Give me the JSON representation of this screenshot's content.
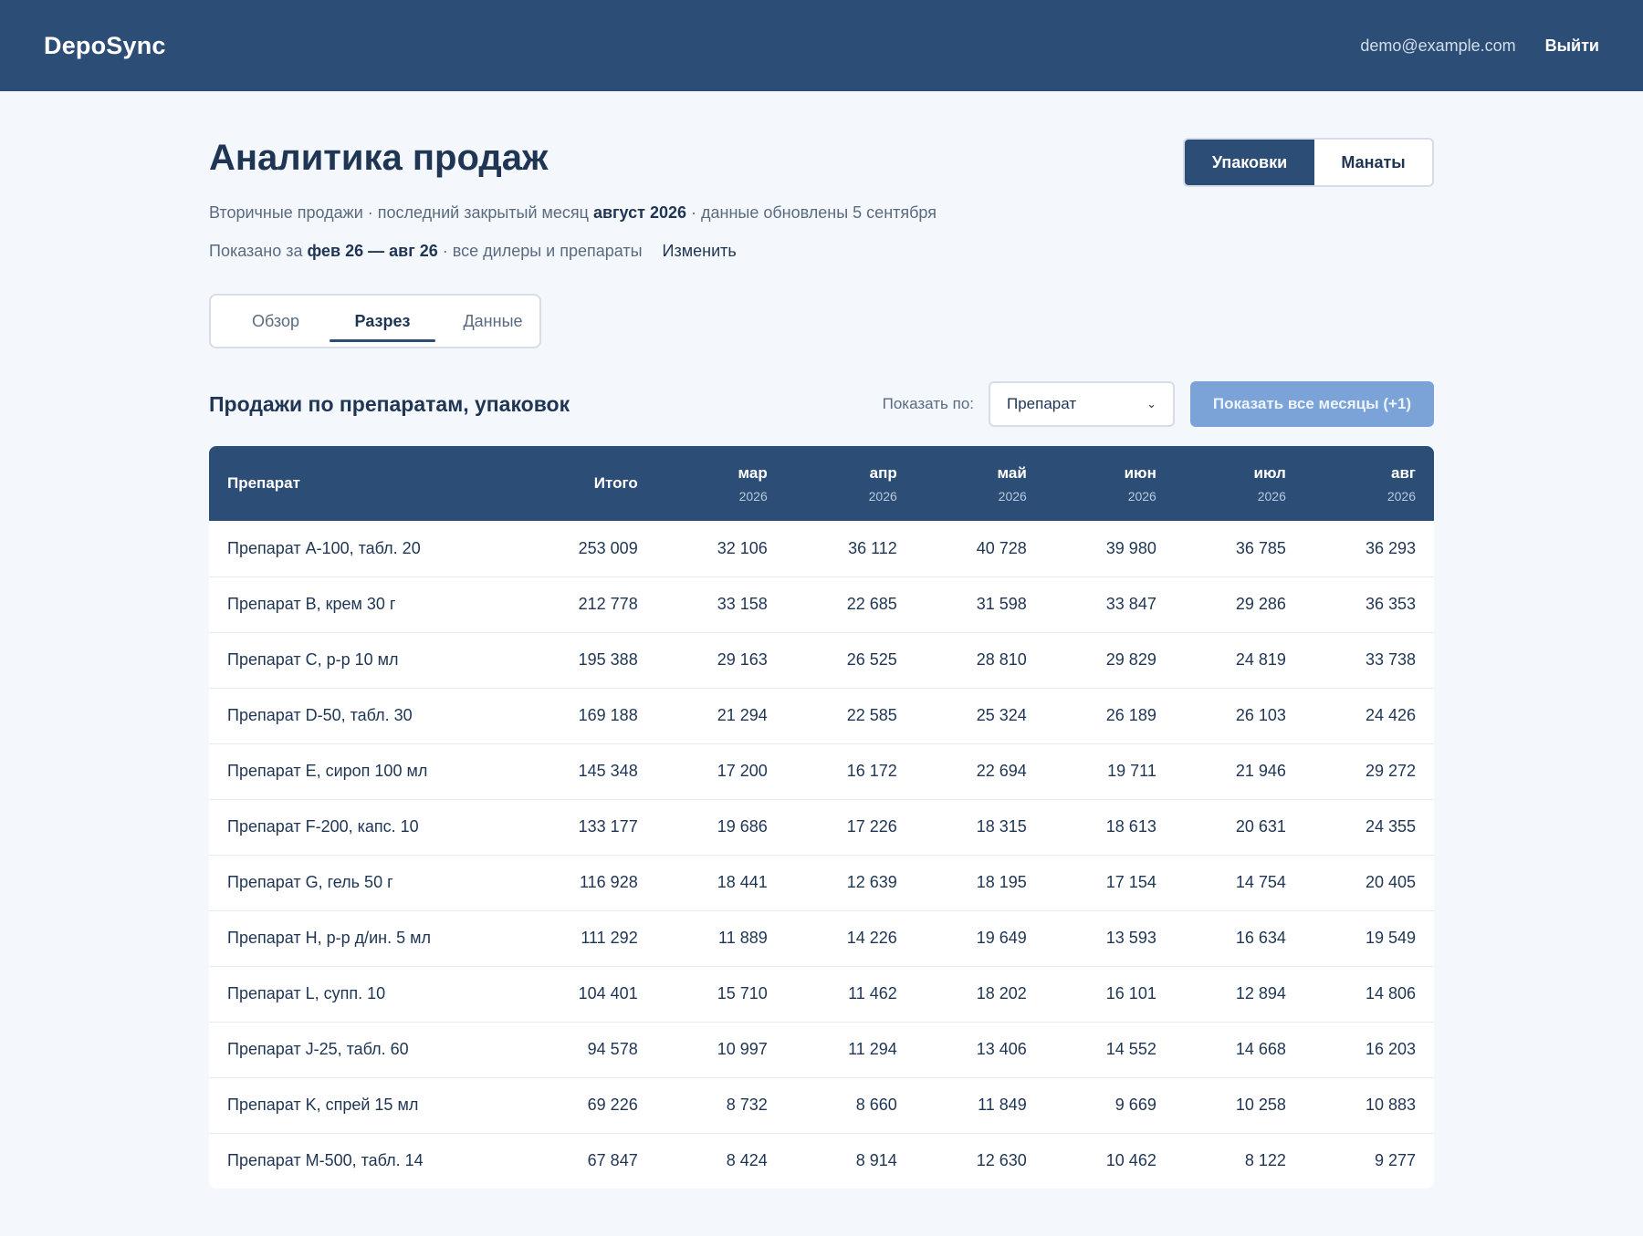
{
  "header": {
    "logo": "DepoSync",
    "user_email": "demo@example.com",
    "logout_label": "Выйти"
  },
  "page": {
    "title": "Аналитика продаж",
    "unit_toggle": {
      "active": "Упаковки",
      "inactive": "Манаты"
    },
    "subtitle": {
      "prefix": "Вторичные продажи · последний закрытый месяц",
      "month": "август 2026",
      "suffix": "· данные обновлены 5 сентября"
    },
    "period": {
      "prefix": "Показано за",
      "range": "фев 26 — авг 26",
      "suffix": "· все дилеры и препараты",
      "change_label": "Изменить"
    },
    "tabs": [
      {
        "label": "Обзор",
        "active": false
      },
      {
        "label": "Разрез",
        "active": true
      },
      {
        "label": "Данные",
        "active": false
      }
    ]
  },
  "section": {
    "title": "Продажи по препаратам, упаковок",
    "show_by_label": "Показать по:",
    "show_by_value": "Препарат",
    "all_months_label": "Показать все месяцы (+1)"
  },
  "table": {
    "name_header": "Препарат",
    "total_header": "Итого",
    "months": [
      {
        "m": "мар",
        "y": "2026"
      },
      {
        "m": "апр",
        "y": "2026"
      },
      {
        "m": "май",
        "y": "2026"
      },
      {
        "m": "июн",
        "y": "2026"
      },
      {
        "m": "июл",
        "y": "2026"
      },
      {
        "m": "авг",
        "y": "2026"
      }
    ],
    "rows": [
      {
        "name": "Препарат A-100, табл. 20",
        "total": "253 009",
        "values": [
          "32 106",
          "36 112",
          "40 728",
          "39 980",
          "36 785",
          "36 293"
        ]
      },
      {
        "name": "Препарат B, крем 30 г",
        "total": "212 778",
        "values": [
          "33 158",
          "22 685",
          "31 598",
          "33 847",
          "29 286",
          "36 353"
        ]
      },
      {
        "name": "Препарат C, р-р 10 мл",
        "total": "195 388",
        "values": [
          "29 163",
          "26 525",
          "28 810",
          "29 829",
          "24 819",
          "33 738"
        ]
      },
      {
        "name": "Препарат D-50, табл. 30",
        "total": "169 188",
        "values": [
          "21 294",
          "22 585",
          "25 324",
          "26 189",
          "26 103",
          "24 426"
        ]
      },
      {
        "name": "Препарат E, сироп 100 мл",
        "total": "145 348",
        "values": [
          "17 200",
          "16 172",
          "22 694",
          "19 711",
          "21 946",
          "29 272"
        ]
      },
      {
        "name": "Препарат F-200, капс. 10",
        "total": "133 177",
        "values": [
          "19 686",
          "17 226",
          "18 315",
          "18 613",
          "20 631",
          "24 355"
        ]
      },
      {
        "name": "Препарат G, гель 50 г",
        "total": "116 928",
        "values": [
          "18 441",
          "12 639",
          "18 195",
          "17 154",
          "14 754",
          "20 405"
        ]
      },
      {
        "name": "Препарат H, р-р д/ин. 5 мл",
        "total": "111 292",
        "values": [
          "11 889",
          "14 226",
          "19 649",
          "13 593",
          "16 634",
          "19 549"
        ]
      },
      {
        "name": "Препарат L, супп. 10",
        "total": "104 401",
        "values": [
          "15 710",
          "11 462",
          "18 202",
          "16 101",
          "12 894",
          "14 806"
        ]
      },
      {
        "name": "Препарат J-25, табл. 60",
        "total": "94 578",
        "values": [
          "10 997",
          "11 294",
          "13 406",
          "14 552",
          "14 668",
          "16 203"
        ]
      },
      {
        "name": "Препарат K, спрей 15 мл",
        "total": "69 226",
        "values": [
          "8 732",
          "8 660",
          "11 849",
          "9 669",
          "10 258",
          "10 883"
        ]
      },
      {
        "name": "Препарат M-500, табл. 14",
        "total": "67 847",
        "values": [
          "8 424",
          "8 914",
          "12 630",
          "10 462",
          "8 122",
          "9 277"
        ]
      }
    ]
  }
}
